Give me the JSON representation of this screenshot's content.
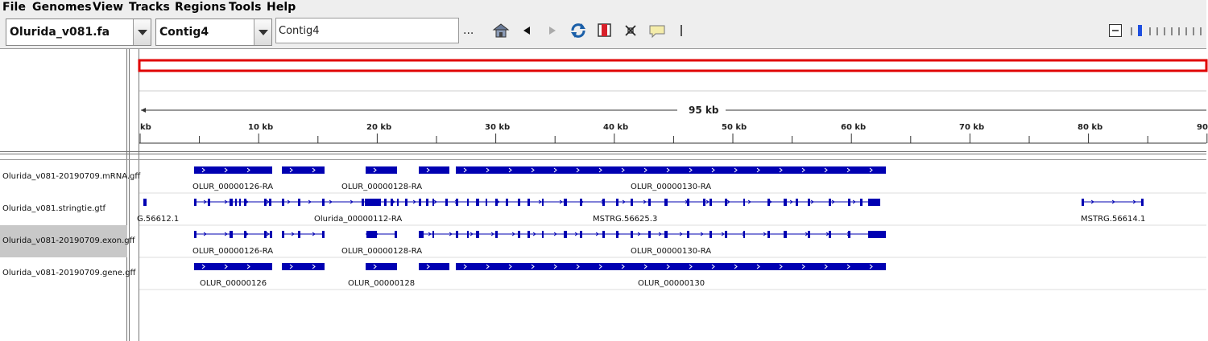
{
  "menu": [
    {
      "label": "File",
      "accel": "F",
      "rest": "ile"
    },
    {
      "label": "Genomes",
      "accel": "",
      "rest": "Genomes"
    },
    {
      "label": "View",
      "accel": "V",
      "rest": "iew"
    },
    {
      "label": "Tracks",
      "accel": "",
      "rest": "Tracks"
    },
    {
      "label": "Regions",
      "accel": "",
      "rest": "Regions"
    },
    {
      "label": "Tools",
      "accel": "",
      "rest": "Tools"
    },
    {
      "label": "Help",
      "accel": "",
      "rest": "Help"
    }
  ],
  "toolbar": {
    "genome": "Olurida_v081.fa",
    "chromosome": "Contig4",
    "locus": "Contig4",
    "more": "...",
    "icons": [
      "home-icon",
      "back-icon",
      "forward-icon",
      "refresh-icon",
      "region-of-interest-icon",
      "resize-icon",
      "popup-info-icon",
      "line-icon"
    ]
  },
  "ruler": {
    "span_label": "95 kb",
    "tick_labels": [
      "kb",
      "10 kb",
      "20 kb",
      "30 kb",
      "40 kb",
      "50 kb",
      "60 kb",
      "70 kb",
      "80 kb",
      "90"
    ]
  },
  "tracks": [
    {
      "name": "Olurida_v081-20190709.mRNA.gff",
      "selected": false,
      "labels": [
        "OLUR_00000126-RA",
        "OLUR_00000128-RA",
        "OLUR_00000130-RA"
      ]
    },
    {
      "name": "Olurida_v081.stringtie.gtf",
      "selected": false,
      "labels": [
        "G.56612.1",
        "Olurida_00000112-RA",
        "MSTRG.56625.3",
        "MSTRG.56614.1"
      ]
    },
    {
      "name": "Olurida_v081-20190709.exon.gff",
      "selected": true,
      "labels": [
        "OLUR_00000126-RA",
        "OLUR_00000128-RA",
        "OLUR_00000130-RA"
      ]
    },
    {
      "name": "Olurida_v081-20190709.gene.gff",
      "selected": false,
      "labels": [
        "OLUR_00000126",
        "OLUR_00000128",
        "OLUR_00000130"
      ]
    }
  ],
  "colors": {
    "feature": "#0000b2",
    "chromosome_band": "#e00000",
    "background": "#eeeeee"
  }
}
